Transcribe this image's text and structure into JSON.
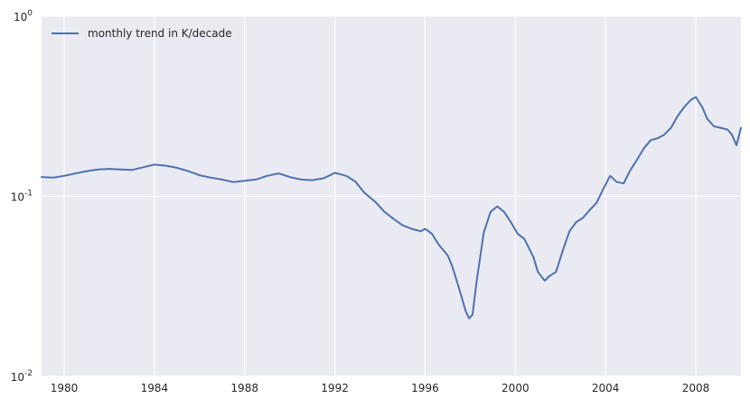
{
  "chart_data": {
    "type": "line",
    "title": "",
    "xlabel": "",
    "ylabel": "",
    "xlim": [
      1979.0,
      2010.0
    ],
    "ylim": [
      0.01,
      1.0
    ],
    "yscale": "log",
    "grid": true,
    "legend_placement": "top-left",
    "colors": {
      "background": "#EAEAF2",
      "grid": "#FFFFFF",
      "line": "#4C72B0",
      "text": "#262626"
    },
    "x_ticks": [
      {
        "value": 1980,
        "label": "1980"
      },
      {
        "value": 1984,
        "label": "1984"
      },
      {
        "value": 1988,
        "label": "1988"
      },
      {
        "value": 1992,
        "label": "1992"
      },
      {
        "value": 1996,
        "label": "1996"
      },
      {
        "value": 2000,
        "label": "2000"
      },
      {
        "value": 2004,
        "label": "2004"
      },
      {
        "value": 2008,
        "label": "2008"
      }
    ],
    "y_ticks": [
      {
        "value": 1.0,
        "base": "10",
        "exp": "0"
      },
      {
        "value": 0.1,
        "base": "10",
        "exp": "-1"
      },
      {
        "value": 0.01,
        "base": "10",
        "exp": "-2"
      }
    ],
    "series": [
      {
        "name": "monthly trend in K/decade",
        "x": [
          1979.0,
          1979.5,
          1980.0,
          1980.5,
          1981.0,
          1981.5,
          1982.0,
          1982.5,
          1983.0,
          1983.5,
          1984.0,
          1984.5,
          1985.0,
          1985.5,
          1986.0,
          1986.5,
          1987.0,
          1987.5,
          1988.0,
          1988.5,
          1989.0,
          1989.5,
          1990.0,
          1990.5,
          1991.0,
          1991.5,
          1992.0,
          1992.5,
          1992.9,
          1993.3,
          1993.8,
          1994.2,
          1994.6,
          1995.0,
          1995.4,
          1995.8,
          1996.0,
          1996.3,
          1996.6,
          1997.0,
          1997.2,
          1997.5,
          1997.8,
          1997.95,
          1998.1,
          1998.3,
          1998.6,
          1998.9,
          1999.2,
          1999.5,
          1999.8,
          2000.1,
          2000.4,
          2000.8,
          2001.0,
          2001.3,
          2001.5,
          2001.8,
          2002.1,
          2002.4,
          2002.7,
          2003.0,
          2003.3,
          2003.6,
          2003.9,
          2004.2,
          2004.5,
          2004.8,
          2005.1,
          2005.4,
          2005.7,
          2006.0,
          2006.3,
          2006.6,
          2006.9,
          2007.2,
          2007.5,
          2007.8,
          2008.0,
          2008.3,
          2008.5,
          2008.8,
          2009.1,
          2009.4,
          2009.6,
          2009.8,
          2010.0
        ],
        "y": [
          0.128,
          0.127,
          0.13,
          0.134,
          0.138,
          0.141,
          0.142,
          0.141,
          0.14,
          0.145,
          0.15,
          0.148,
          0.144,
          0.138,
          0.131,
          0.127,
          0.124,
          0.12,
          0.122,
          0.124,
          0.13,
          0.134,
          0.128,
          0.124,
          0.123,
          0.126,
          0.135,
          0.13,
          0.121,
          0.105,
          0.093,
          0.082,
          0.075,
          0.069,
          0.066,
          0.064,
          0.066,
          0.062,
          0.054,
          0.047,
          0.041,
          0.031,
          0.023,
          0.021,
          0.022,
          0.035,
          0.063,
          0.082,
          0.088,
          0.082,
          0.072,
          0.062,
          0.058,
          0.046,
          0.038,
          0.034,
          0.036,
          0.038,
          0.05,
          0.064,
          0.072,
          0.076,
          0.084,
          0.092,
          0.11,
          0.13,
          0.12,
          0.118,
          0.14,
          0.16,
          0.185,
          0.205,
          0.21,
          0.22,
          0.24,
          0.28,
          0.315,
          0.345,
          0.356,
          0.31,
          0.27,
          0.245,
          0.24,
          0.235,
          0.22,
          0.192,
          0.24
        ]
      }
    ]
  }
}
